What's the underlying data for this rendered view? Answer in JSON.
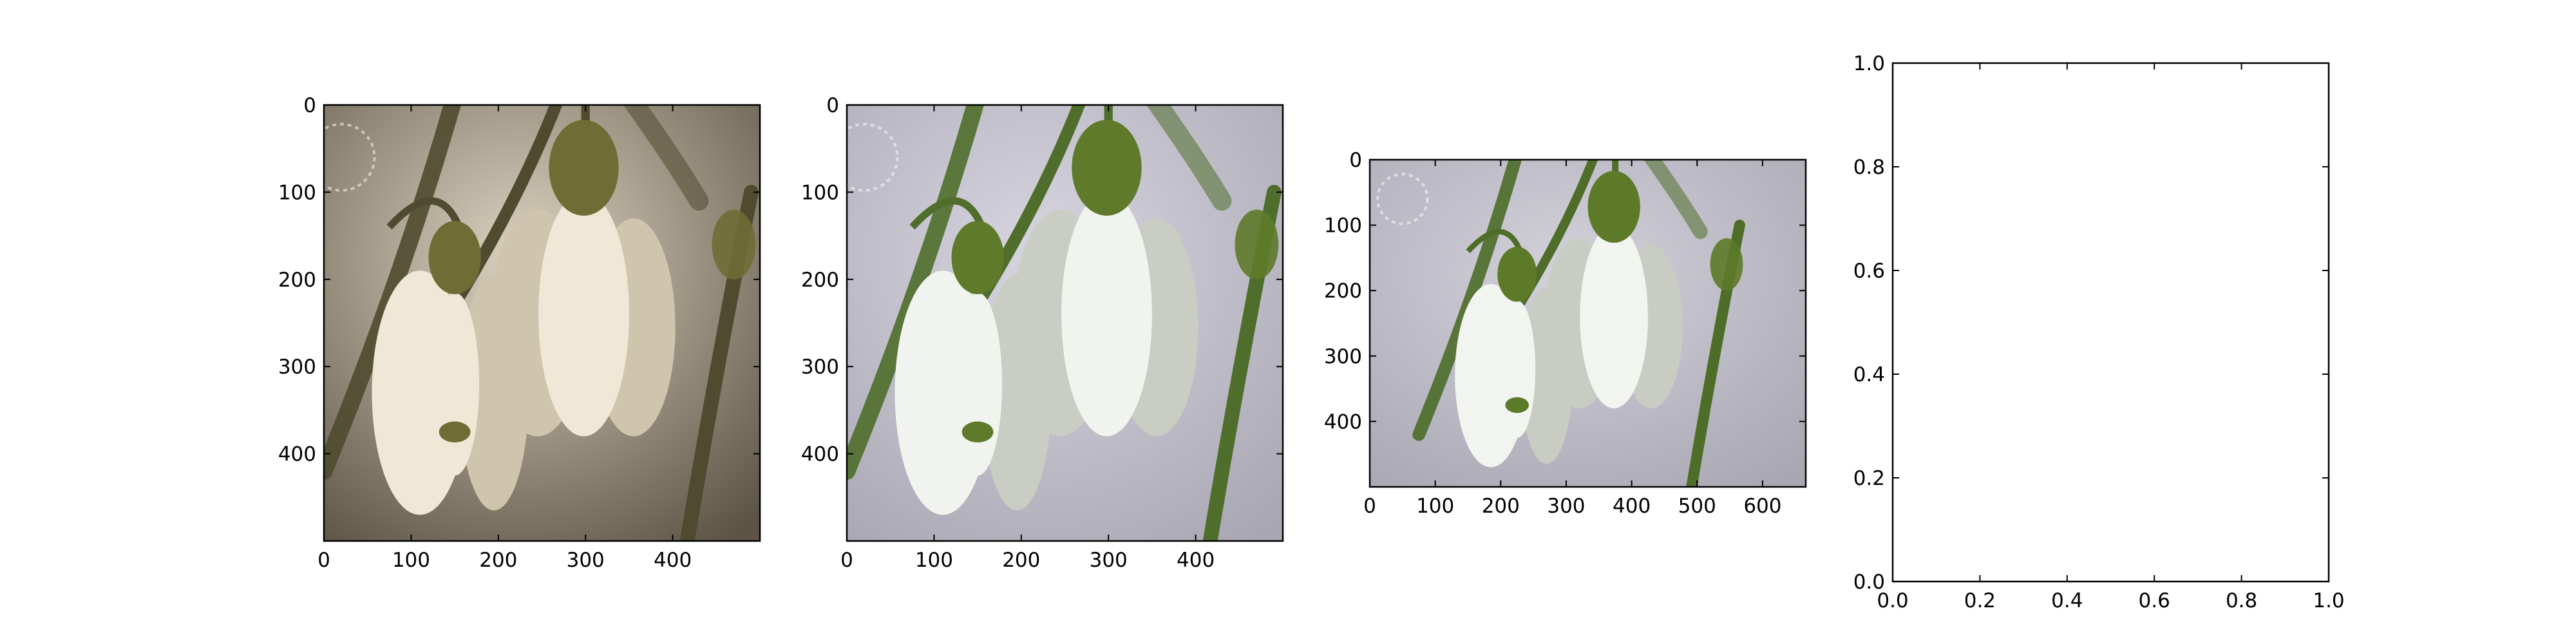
{
  "chart_data": [
    {
      "type": "image",
      "image_subject": "snowdrop flowers, sepia toned",
      "x_ticks": [
        0,
        100,
        200,
        300,
        400
      ],
      "y_ticks": [
        0,
        100,
        200,
        300,
        400
      ],
      "xlim": [
        0,
        500
      ],
      "ylim": [
        500,
        0
      ],
      "palette": {
        "bg_light": "#dcd2c0",
        "bg_dark": "#5d5446",
        "stem": "#4e4b30",
        "bud": "#6f6d35",
        "petal": "#efe8d6",
        "petal_shade": "#cfc5ae"
      }
    },
    {
      "type": "image",
      "image_subject": "snowdrop flowers, natural color",
      "x_ticks": [
        0,
        100,
        200,
        300,
        400
      ],
      "y_ticks": [
        0,
        100,
        200,
        300,
        400
      ],
      "xlim": [
        0,
        500
      ],
      "ylim": [
        500,
        0
      ],
      "palette": {
        "bg_light": "#d7d5df",
        "bg_dark": "#a9a7b3",
        "stem": "#4f6e2b",
        "bud": "#5e7a2a",
        "petal": "#f1f3ee",
        "petal_shade": "#c9cdc3"
      }
    },
    {
      "type": "image",
      "image_subject": "snowdrop flowers, wider crop",
      "x_ticks": [
        0,
        100,
        200,
        300,
        400,
        500,
        600
      ],
      "y_ticks": [
        0,
        100,
        200,
        300,
        400
      ],
      "xlim": [
        0,
        666
      ],
      "ylim": [
        500,
        0
      ],
      "palette": {
        "bg_light": "#d3d2db",
        "bg_dark": "#a8a7b2",
        "stem": "#4d6d29",
        "bud": "#5d7a29",
        "petal": "#f2f4ef",
        "petal_shade": "#c8ccc2"
      }
    },
    {
      "type": "empty",
      "x_ticks": [
        "0.0",
        "0.2",
        "0.4",
        "0.6",
        "0.8",
        "1.0"
      ],
      "y_ticks": [
        "0.0",
        "0.2",
        "0.4",
        "0.6",
        "0.8",
        "1.0"
      ],
      "xlim": [
        0,
        1
      ],
      "ylim": [
        0,
        1
      ]
    }
  ]
}
